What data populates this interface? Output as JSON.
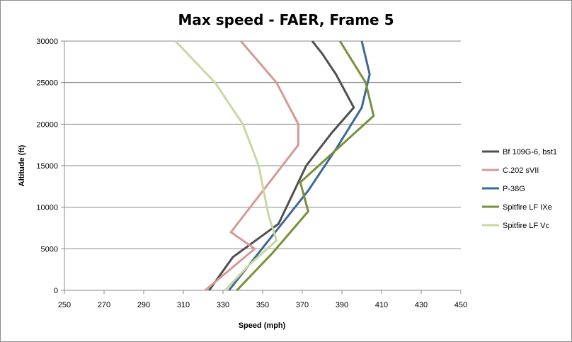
{
  "chart_data": {
    "type": "line",
    "title": "Max speed - FAER, Frame 5",
    "xlabel": "Speed (mph)",
    "ylabel": "Altitude (ft)",
    "xlim": [
      250,
      450
    ],
    "ylim": [
      0,
      30000
    ],
    "x_ticks": [
      "250",
      "270",
      "290",
      "310",
      "330",
      "350",
      "370",
      "390",
      "410",
      "430",
      "450"
    ],
    "y_ticks": [
      "0",
      "5000",
      "10000",
      "15000",
      "20000",
      "25000",
      "30000"
    ],
    "grid": "horizontal",
    "legend_position": "right",
    "series": [
      {
        "name": "Bf 109G-6, bst1",
        "color": "#4f4f4f",
        "points": [
          [
            323,
            0
          ],
          [
            335,
            4000
          ],
          [
            358,
            8000
          ],
          [
            368,
            13000
          ],
          [
            372,
            15000
          ],
          [
            385,
            19000
          ],
          [
            396,
            22000
          ],
          [
            387,
            26000
          ],
          [
            380,
            28500
          ],
          [
            375,
            30000
          ]
        ]
      },
      {
        "name": "C.202 sVII",
        "color": "#d59a95",
        "points": [
          [
            321,
            0
          ],
          [
            346,
            5000
          ],
          [
            334,
            7000
          ],
          [
            368,
            17500
          ],
          [
            368,
            20000
          ],
          [
            357,
            25000
          ],
          [
            339,
            30000
          ]
        ]
      },
      {
        "name": "P-38G",
        "color": "#3f6897",
        "points": [
          [
            333,
            0
          ],
          [
            343,
            3000
          ],
          [
            358,
            7500
          ],
          [
            373,
            12000
          ],
          [
            387,
            17000
          ],
          [
            400,
            22000
          ],
          [
            404,
            26000
          ],
          [
            400,
            30000
          ]
        ]
      },
      {
        "name": "Spitfire LF IXe",
        "color": "#76913a",
        "points": [
          [
            337,
            0
          ],
          [
            355,
            4500
          ],
          [
            373,
            9500
          ],
          [
            369,
            13000
          ],
          [
            406,
            21000
          ],
          [
            402,
            25000
          ],
          [
            389,
            30000
          ]
        ]
      },
      {
        "name": "Spitfire LF Vc",
        "color": "#c8d8a0",
        "points": [
          [
            331,
            0
          ],
          [
            343,
            3000
          ],
          [
            357,
            6000
          ],
          [
            353,
            9000
          ],
          [
            348,
            15000
          ],
          [
            340,
            20000
          ],
          [
            326,
            25000
          ],
          [
            306,
            30000
          ]
        ]
      }
    ]
  }
}
